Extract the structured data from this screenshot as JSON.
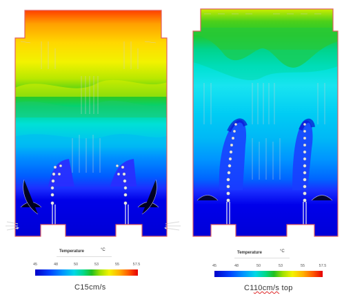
{
  "panels": [
    {
      "caption": "C15cm/s",
      "caption_parts": {
        "pre": "C15cm/s",
        "mark": "",
        "post": ""
      },
      "colorbar": {
        "title": "Temperature",
        "unit": "°C",
        "ticks": [
          "45",
          "48",
          "50",
          "53",
          "55",
          "57.5"
        ]
      }
    },
    {
      "caption": "C110cm/s top",
      "caption_parts": {
        "pre": "C1",
        "mark": "10cm/s",
        "post": " top"
      },
      "colorbar": {
        "title": "Temperature",
        "unit": "°C",
        "ticks": [
          "45",
          "48",
          "50",
          "53",
          "55",
          "57.5"
        ]
      }
    }
  ],
  "colors": {
    "outline": "#e06060",
    "background": "#ffffff"
  }
}
